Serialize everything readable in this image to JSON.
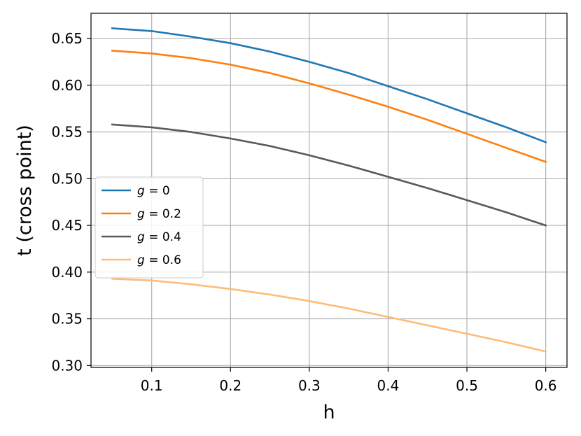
{
  "chart_data": {
    "type": "line",
    "title": "",
    "xlabel": "h",
    "ylabel": "t (cross point)",
    "xlim": [
      0.023,
      0.627
    ],
    "ylim": [
      0.298,
      0.677
    ],
    "xticks": [
      0.1,
      0.2,
      0.3,
      0.4,
      0.5,
      0.6
    ],
    "xtick_labels": [
      "0.1",
      "0.2",
      "0.3",
      "0.4",
      "0.5",
      "0.6"
    ],
    "yticks": [
      0.3,
      0.35,
      0.4,
      0.45,
      0.5,
      0.55,
      0.6,
      0.65
    ],
    "ytick_labels": [
      "0.30",
      "0.35",
      "0.40",
      "0.45",
      "0.50",
      "0.55",
      "0.60",
      "0.65"
    ],
    "grid": true,
    "legend_position": "center-left",
    "series": [
      {
        "name": "g = 0",
        "legend_var": "g",
        "legend_rest": " = 0",
        "color": "#1f77b4",
        "x": [
          0.05,
          0.1,
          0.15,
          0.2,
          0.25,
          0.3,
          0.35,
          0.4,
          0.45,
          0.5,
          0.55,
          0.6
        ],
        "y": [
          0.661,
          0.658,
          0.652,
          0.645,
          0.636,
          0.625,
          0.613,
          0.599,
          0.585,
          0.57,
          0.555,
          0.539
        ]
      },
      {
        "name": "g = 0.2",
        "legend_var": "g",
        "legend_rest": " = 0.2",
        "color": "#ff7f0e",
        "x": [
          0.05,
          0.1,
          0.15,
          0.2,
          0.25,
          0.3,
          0.35,
          0.4,
          0.45,
          0.5,
          0.55,
          0.6
        ],
        "y": [
          0.637,
          0.634,
          0.629,
          0.622,
          0.613,
          0.602,
          0.59,
          0.577,
          0.563,
          0.548,
          0.533,
          0.518
        ]
      },
      {
        "name": "g = 0.4",
        "legend_var": "g",
        "legend_rest": " = 0.4",
        "color": "#595959",
        "x": [
          0.05,
          0.1,
          0.15,
          0.2,
          0.25,
          0.3,
          0.35,
          0.4,
          0.45,
          0.5,
          0.55,
          0.6
        ],
        "y": [
          0.558,
          0.555,
          0.55,
          0.543,
          0.535,
          0.525,
          0.514,
          0.502,
          0.49,
          0.477,
          0.464,
          0.45
        ]
      },
      {
        "name": "g = 0.6",
        "legend_var": "g",
        "legend_rest": " = 0.6",
        "color": "#ffbb78",
        "x": [
          0.05,
          0.1,
          0.15,
          0.2,
          0.25,
          0.3,
          0.35,
          0.4,
          0.45,
          0.5,
          0.55,
          0.6
        ],
        "y": [
          0.393,
          0.391,
          0.387,
          0.382,
          0.376,
          0.369,
          0.361,
          0.352,
          0.343,
          0.334,
          0.325,
          0.315
        ]
      }
    ]
  }
}
